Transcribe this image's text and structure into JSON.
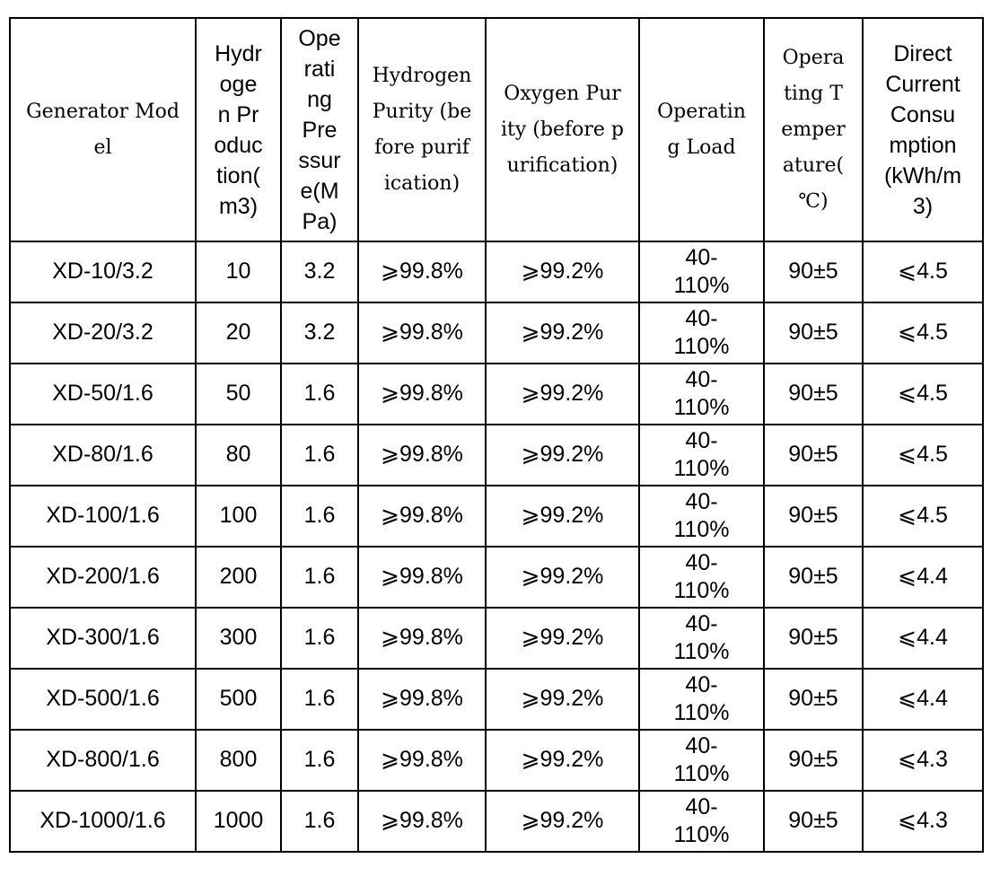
{
  "table": {
    "headers": [
      "Generator Mod\nel",
      "Hydr\noge\nn Pr\noduc\ntion(\nm3)",
      "Ope\nrati\nng\nPre\nssur\ne(M\nPa)",
      "Hydrogen\nPurity (be\nfore purif\nication)",
      "Oxygen Pur\nity (before p\nurification)",
      "Operatin\ng Load",
      "Opera\nting T\nemper\nature(\n℃)",
      "Direct\nCurrent\nConsu\nmption\n(kWh/m\n3)"
    ],
    "rows": [
      {
        "model": "XD-10/3.2",
        "production": "10",
        "pressure": "3.2",
        "h2_purity": "⩾99.8%",
        "o2_purity": "⩾99.2%",
        "load": "40-\n110%",
        "temperature": "90±5",
        "dc_consumption": "⩽4.5"
      },
      {
        "model": "XD-20/3.2",
        "production": "20",
        "pressure": "3.2",
        "h2_purity": "⩾99.8%",
        "o2_purity": "⩾99.2%",
        "load": "40-\n110%",
        "temperature": "90±5",
        "dc_consumption": "⩽4.5"
      },
      {
        "model": "XD-50/1.6",
        "production": "50",
        "pressure": "1.6",
        "h2_purity": "⩾99.8%",
        "o2_purity": "⩾99.2%",
        "load": "40-\n110%",
        "temperature": "90±5",
        "dc_consumption": "⩽4.5"
      },
      {
        "model": "XD-80/1.6",
        "production": "80",
        "pressure": "1.6",
        "h2_purity": "⩾99.8%",
        "o2_purity": "⩾99.2%",
        "load": "40-\n110%",
        "temperature": "90±5",
        "dc_consumption": "⩽4.5"
      },
      {
        "model": "XD-100/1.6",
        "production": "100",
        "pressure": "1.6",
        "h2_purity": "⩾99.8%",
        "o2_purity": "⩾99.2%",
        "load": "40-\n110%",
        "temperature": "90±5",
        "dc_consumption": "⩽4.5"
      },
      {
        "model": "XD-200/1.6",
        "production": "200",
        "pressure": "1.6",
        "h2_purity": "⩾99.8%",
        "o2_purity": "⩾99.2%",
        "load": "40-\n110%",
        "temperature": "90±5",
        "dc_consumption": "⩽4.4"
      },
      {
        "model": "XD-300/1.6",
        "production": "300",
        "pressure": "1.6",
        "h2_purity": "⩾99.8%",
        "o2_purity": "⩾99.2%",
        "load": "40-\n110%",
        "temperature": "90±5",
        "dc_consumption": "⩽4.4"
      },
      {
        "model": "XD-500/1.6",
        "production": "500",
        "pressure": "1.6",
        "h2_purity": "⩾99.8%",
        "o2_purity": "⩾99.2%",
        "load": "40-\n110%",
        "temperature": "90±5",
        "dc_consumption": "⩽4.4"
      },
      {
        "model": "XD-800/1.6",
        "production": "800",
        "pressure": "1.6",
        "h2_purity": "⩾99.8%",
        "o2_purity": "⩾99.2%",
        "load": "40-\n110%",
        "temperature": "90±5",
        "dc_consumption": "⩽4.3"
      },
      {
        "model": "XD-1000/1.6",
        "production": "1000",
        "pressure": "1.6",
        "h2_purity": "⩾99.8%",
        "o2_purity": "⩾99.2%",
        "load": "40-\n110%",
        "temperature": "90±5",
        "dc_consumption": "⩽4.3"
      }
    ]
  }
}
